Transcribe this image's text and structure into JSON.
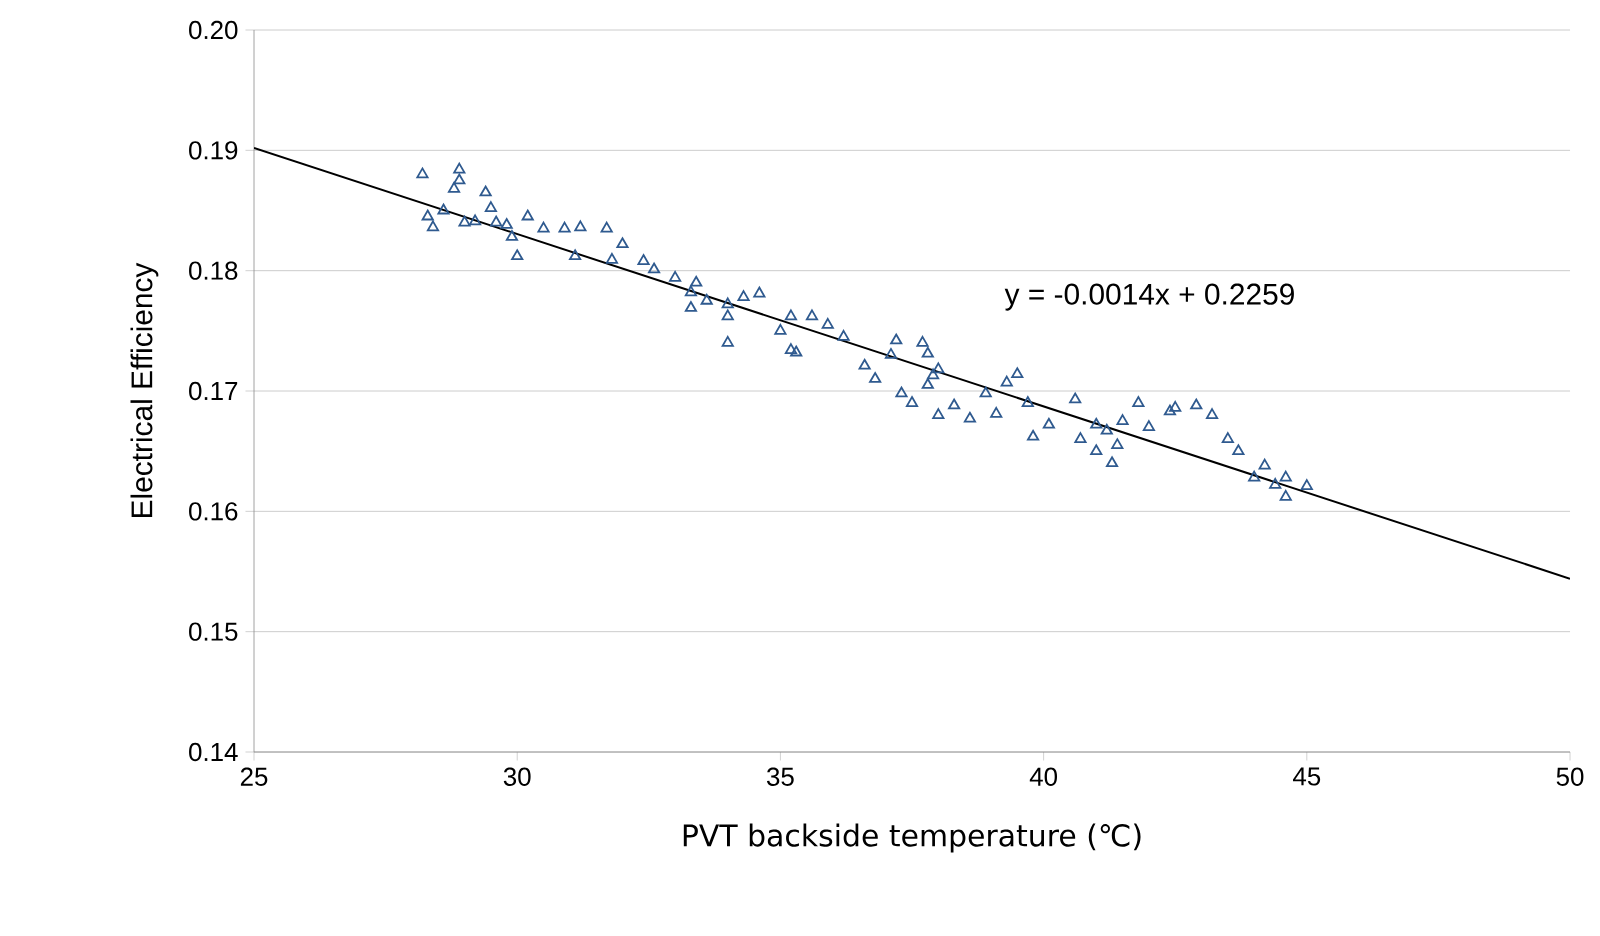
{
  "chart_data": {
    "type": "scatter",
    "xlabel": "PVT backside temperature (℃)",
    "ylabel": "Electrical Efficiency",
    "xlim": [
      25,
      50
    ],
    "xticks": [
      25,
      30,
      35,
      40,
      45,
      50
    ],
    "ylim": [
      0.14,
      0.2
    ],
    "yticks": [
      {
        "value": 0.14,
        "label": "0.14"
      },
      {
        "value": 0.15,
        "label": "0.15"
      },
      {
        "value": 0.16,
        "label": "0.16"
      },
      {
        "value": 0.17,
        "label": "0.17"
      },
      {
        "value": 0.18,
        "label": "0.18"
      },
      {
        "value": 0.19,
        "label": "0.19"
      },
      {
        "value": 0.2,
        "label": "0.20"
      }
    ],
    "grid": "y",
    "marker": "triangle",
    "annotations": [
      "y = -0.0014x + 0.2259"
    ],
    "series": [
      {
        "color": "#2f5a8f",
        "x": [
          28.2,
          28.3,
          28.4,
          28.6,
          28.8,
          28.9,
          28.9,
          29.0,
          29.2,
          29.4,
          29.5,
          29.6,
          29.8,
          29.9,
          30.2,
          30.0,
          30.5,
          30.9,
          31.1,
          31.2,
          31.7,
          31.8,
          32.0,
          32.4,
          32.6,
          33.0,
          33.3,
          33.3,
          33.4,
          33.6,
          34.0,
          34.0,
          34.0,
          34.3,
          34.6,
          35.0,
          35.2,
          35.2,
          35.3,
          35.6,
          35.9,
          36.2,
          36.6,
          36.8,
          37.1,
          37.2,
          37.3,
          37.5,
          37.7,
          37.8,
          37.8,
          37.9,
          38.0,
          38.0,
          38.3,
          38.6,
          38.9,
          39.1,
          39.3,
          39.5,
          39.7,
          39.8,
          40.1,
          40.6,
          40.7,
          41.0,
          41.0,
          41.2,
          41.3,
          41.4,
          41.5,
          41.8,
          42.0,
          42.4,
          42.5,
          42.9,
          43.2,
          43.5,
          43.7,
          44.0,
          44.2,
          44.4,
          44.6,
          44.6,
          45.0
        ],
        "values": [
          0.188,
          0.1845,
          0.1836,
          0.185,
          0.1868,
          0.1884,
          0.1875,
          0.184,
          0.1841,
          0.1865,
          0.1852,
          0.184,
          0.1838,
          0.1828,
          0.1845,
          0.1812,
          0.1835,
          0.1835,
          0.1812,
          0.1836,
          0.1835,
          0.1809,
          0.1822,
          0.1808,
          0.1801,
          0.1794,
          0.1782,
          0.1769,
          0.179,
          0.1775,
          0.1772,
          0.1762,
          0.174,
          0.1778,
          0.1781,
          0.175,
          0.1762,
          0.1734,
          0.1732,
          0.1762,
          0.1755,
          0.1745,
          0.1721,
          0.171,
          0.173,
          0.1742,
          0.1698,
          0.169,
          0.174,
          0.1705,
          0.1731,
          0.1713,
          0.168,
          0.1718,
          0.1688,
          0.1677,
          0.1698,
          0.1681,
          0.1707,
          0.1714,
          0.169,
          0.1662,
          0.1672,
          0.1693,
          0.166,
          0.1672,
          0.165,
          0.1667,
          0.164,
          0.1655,
          0.1675,
          0.169,
          0.167,
          0.1683,
          0.1686,
          0.1688,
          0.168,
          0.166,
          0.165,
          0.1628,
          0.1638,
          0.1622,
          0.1628,
          0.1612,
          0.1621
        ]
      },
      {
        "type": "line",
        "color": "#000000",
        "marker": "none",
        "x": [
          25,
          50
        ],
        "values": [
          0.1902,
          0.1544
        ]
      }
    ]
  }
}
